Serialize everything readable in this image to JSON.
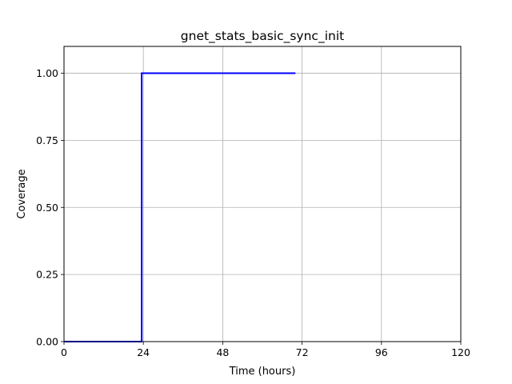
{
  "chart_data": {
    "type": "line",
    "title": "gnet_stats_basic_sync_init",
    "xlabel": "Time (hours)",
    "ylabel": "Coverage",
    "xlim": [
      0,
      120
    ],
    "ylim": [
      0,
      1.1
    ],
    "xticks": [
      0,
      24,
      48,
      72,
      96,
      120
    ],
    "xtick_labels": [
      "0",
      "24",
      "48",
      "72",
      "96",
      "120"
    ],
    "yticks": [
      0,
      0.25,
      0.5,
      0.75,
      1.0
    ],
    "ytick_labels": [
      "0.00",
      "0.25",
      "0.50",
      "0.75",
      "1.00"
    ],
    "grid": true,
    "series": [
      {
        "color": "#0000ff",
        "step": true,
        "x": [
          0,
          23.5,
          23.5,
          70
        ],
        "y": [
          0,
          0,
          1,
          1
        ]
      }
    ]
  }
}
